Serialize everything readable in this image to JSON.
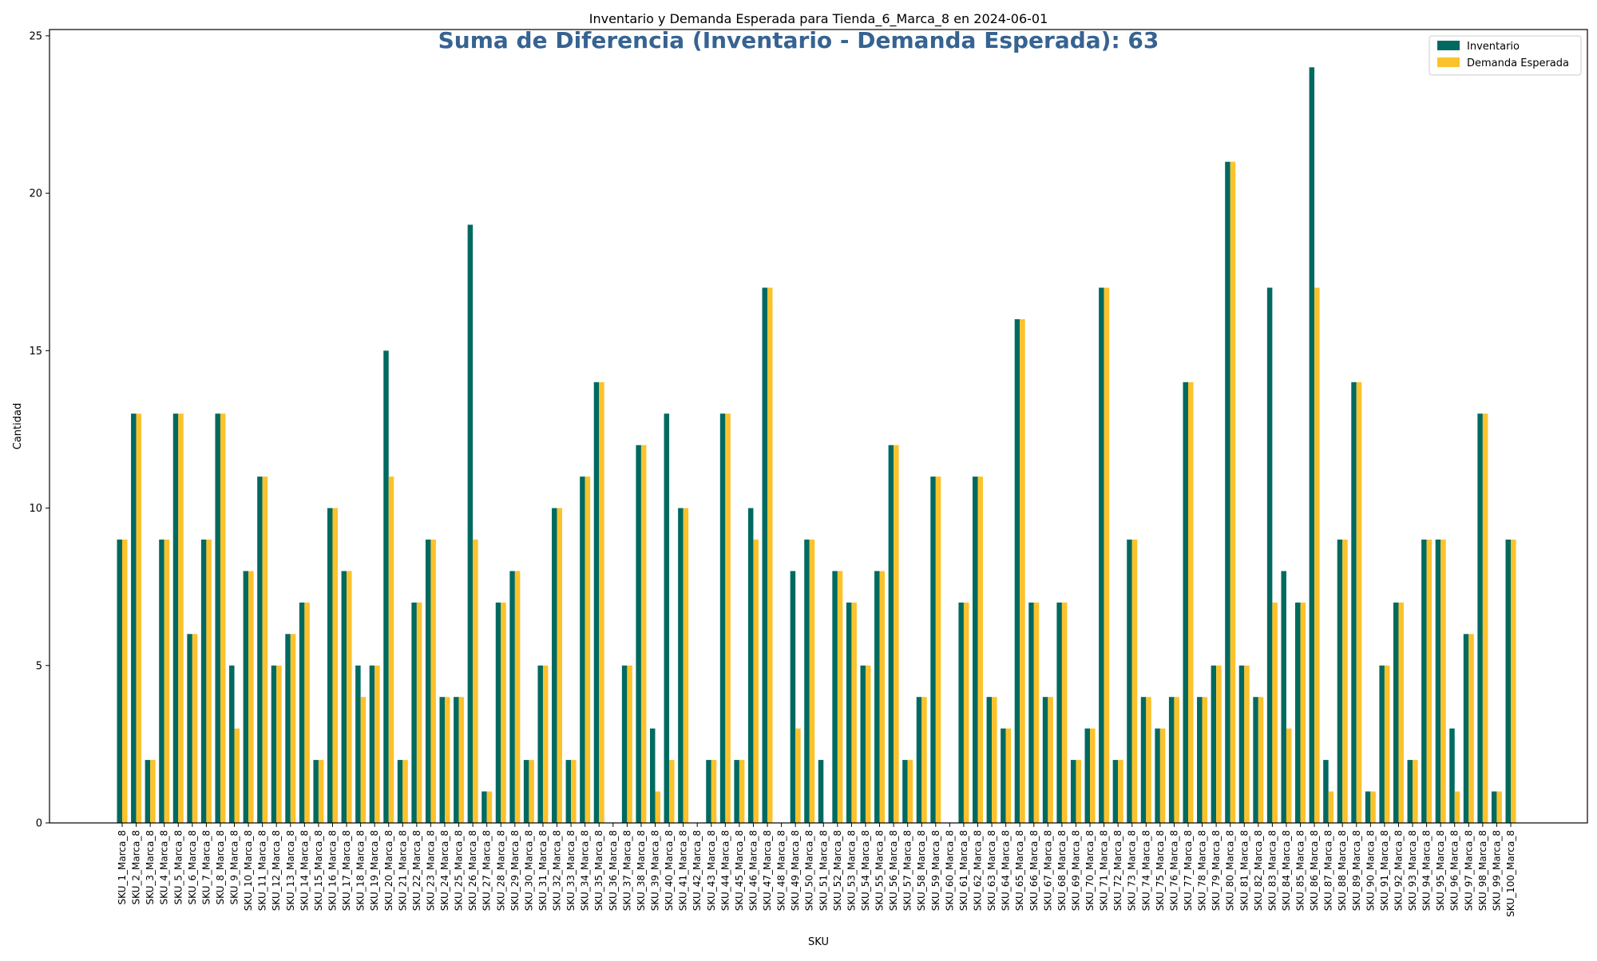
{
  "chart_data": {
    "type": "bar",
    "title": "Inventario y Demanda Esperada para Tienda_6_Marca_8 en 2024-06-01",
    "annotation": "Suma de Diferencia (Inventario - Demanda Esperada): 63",
    "xlabel": "SKU",
    "ylabel": "Cantidad",
    "ylim": [
      0,
      25.2
    ],
    "yticks": [
      0,
      5,
      10,
      15,
      20,
      25
    ],
    "grid": false,
    "legend_position": "top-right",
    "colors": {
      "Inventario": "#006a60",
      "Demanda Esperada": "#fcc22c",
      "annotation": "#366391"
    },
    "categories": [
      "SKU_1_Marca_8",
      "SKU_2_Marca_8",
      "SKU_3_Marca_8",
      "SKU_4_Marca_8",
      "SKU_5_Marca_8",
      "SKU_6_Marca_8",
      "SKU_7_Marca_8",
      "SKU_8_Marca_8",
      "SKU_9_Marca_8",
      "SKU_10_Marca_8",
      "SKU_11_Marca_8",
      "SKU_12_Marca_8",
      "SKU_13_Marca_8",
      "SKU_14_Marca_8",
      "SKU_15_Marca_8",
      "SKU_16_Marca_8",
      "SKU_17_Marca_8",
      "SKU_18_Marca_8",
      "SKU_19_Marca_8",
      "SKU_20_Marca_8",
      "SKU_21_Marca_8",
      "SKU_22_Marca_8",
      "SKU_23_Marca_8",
      "SKU_24_Marca_8",
      "SKU_25_Marca_8",
      "SKU_26_Marca_8",
      "SKU_27_Marca_8",
      "SKU_28_Marca_8",
      "SKU_29_Marca_8",
      "SKU_30_Marca_8",
      "SKU_31_Marca_8",
      "SKU_32_Marca_8",
      "SKU_33_Marca_8",
      "SKU_34_Marca_8",
      "SKU_35_Marca_8",
      "SKU_36_Marca_8",
      "SKU_37_Marca_8",
      "SKU_38_Marca_8",
      "SKU_39_Marca_8",
      "SKU_40_Marca_8",
      "SKU_41_Marca_8",
      "SKU_42_Marca_8",
      "SKU_43_Marca_8",
      "SKU_44_Marca_8",
      "SKU_45_Marca_8",
      "SKU_46_Marca_8",
      "SKU_47_Marca_8",
      "SKU_48_Marca_8",
      "SKU_49_Marca_8",
      "SKU_50_Marca_8",
      "SKU_51_Marca_8",
      "SKU_52_Marca_8",
      "SKU_53_Marca_8",
      "SKU_54_Marca_8",
      "SKU_55_Marca_8",
      "SKU_56_Marca_8",
      "SKU_57_Marca_8",
      "SKU_58_Marca_8",
      "SKU_59_Marca_8",
      "SKU_60_Marca_8",
      "SKU_61_Marca_8",
      "SKU_62_Marca_8",
      "SKU_63_Marca_8",
      "SKU_64_Marca_8",
      "SKU_65_Marca_8",
      "SKU_66_Marca_8",
      "SKU_67_Marca_8",
      "SKU_68_Marca_8",
      "SKU_69_Marca_8",
      "SKU_70_Marca_8",
      "SKU_71_Marca_8",
      "SKU_72_Marca_8",
      "SKU_73_Marca_8",
      "SKU_74_Marca_8",
      "SKU_75_Marca_8",
      "SKU_76_Marca_8",
      "SKU_77_Marca_8",
      "SKU_78_Marca_8",
      "SKU_79_Marca_8",
      "SKU_80_Marca_8",
      "SKU_81_Marca_8",
      "SKU_82_Marca_8",
      "SKU_83_Marca_8",
      "SKU_84_Marca_8",
      "SKU_85_Marca_8",
      "SKU_86_Marca_8",
      "SKU_87_Marca_8",
      "SKU_88_Marca_8",
      "SKU_89_Marca_8",
      "SKU_90_Marca_8",
      "SKU_91_Marca_8",
      "SKU_92_Marca_8",
      "SKU_93_Marca_8",
      "SKU_94_Marca_8",
      "SKU_95_Marca_8",
      "SKU_96_Marca_8",
      "SKU_97_Marca_8",
      "SKU_98_Marca_8",
      "SKU_99_Marca_8",
      "SKU_100_Marca_8"
    ],
    "series": [
      {
        "name": "Inventario",
        "values": [
          9,
          13,
          2,
          9,
          13,
          6,
          9,
          13,
          5,
          8,
          11,
          5,
          6,
          7,
          2,
          10,
          8,
          5,
          5,
          15,
          2,
          7,
          9,
          4,
          4,
          19,
          1,
          7,
          8,
          2,
          5,
          10,
          2,
          11,
          14,
          0,
          5,
          12,
          3,
          13,
          10,
          0,
          2,
          13,
          2,
          10,
          17,
          0,
          8,
          9,
          2,
          8,
          7,
          5,
          8,
          12,
          2,
          4,
          11,
          0,
          7,
          11,
          4,
          3,
          16,
          7,
          4,
          7,
          2,
          3,
          17,
          2,
          9,
          4,
          3,
          4,
          14,
          4,
          5,
          21,
          5,
          4,
          17,
          8,
          7,
          24,
          2,
          9,
          14,
          1,
          5,
          7,
          2,
          9,
          9,
          3,
          6,
          13,
          1,
          9
        ]
      },
      {
        "name": "Demanda Esperada",
        "values": [
          9,
          13,
          2,
          9,
          13,
          6,
          9,
          13,
          3,
          8,
          11,
          5,
          6,
          7,
          2,
          10,
          8,
          4,
          5,
          11,
          2,
          7,
          9,
          4,
          4,
          9,
          1,
          7,
          8,
          2,
          5,
          10,
          2,
          11,
          14,
          0,
          5,
          12,
          1,
          2,
          10,
          0,
          2,
          13,
          2,
          9,
          17,
          0,
          3,
          9,
          0,
          8,
          7,
          5,
          8,
          12,
          2,
          4,
          11,
          0,
          7,
          11,
          4,
          3,
          16,
          7,
          4,
          7,
          2,
          3,
          17,
          2,
          9,
          4,
          3,
          4,
          14,
          4,
          5,
          21,
          5,
          4,
          7,
          3,
          7,
          17,
          1,
          9,
          14,
          1,
          5,
          7,
          2,
          9,
          9,
          1,
          6,
          13,
          1,
          9
        ]
      }
    ]
  }
}
